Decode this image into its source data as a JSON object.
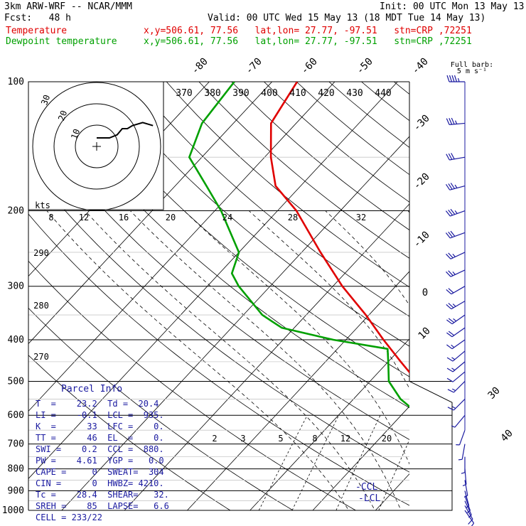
{
  "header": {
    "model": "3km ARW-WRF -- NCAR/MMM",
    "init": "Init: 00 UTC Mon 13 May 13",
    "fcst": "Fcst:   48 h",
    "valid": "Valid: 00 UTC Wed 15 May 13 (18 MDT Tue 14 May 13)",
    "temp_label": "Temperature",
    "temp_info": "x,y=506.61, 77.56   lat,lon= 27.77, -97.51   stn=CRP ,72251",
    "dew_label": "Dewpoint temperature",
    "dew_info": "x,y=506.61, 77.56   lat,lon= 27.77, -97.51   stn=CRP ,72251"
  },
  "colors": {
    "temperature": "#e00000",
    "dewpoint": "#00a000",
    "parcel_text": "#1a1aa0",
    "wind": "#1a1aa0"
  },
  "chart_data": {
    "type": "line",
    "title": "",
    "ylabel": "",
    "pressure_ticks": [
      "100",
      "200",
      "300",
      "400",
      "500",
      "600",
      "700",
      "800",
      "900",
      "1000"
    ],
    "isotherm_labels": [
      "-80",
      "-70",
      "-60",
      "-50",
      "-40",
      "-30",
      "-20",
      "-10",
      "0",
      "10",
      "30",
      "40"
    ],
    "theta_labels": [
      "370",
      "380",
      "390",
      "400",
      "410",
      "420",
      "430",
      "440"
    ],
    "low_theta_labels": [
      "290",
      "280",
      "270"
    ],
    "mixing_ratio_labels": [
      "2",
      "3",
      "5",
      "8",
      "12",
      "20"
    ],
    "hodo_kts_label": "kts",
    "hodo_speed_labels": [
      "8",
      "12",
      "16",
      "20",
      "24",
      "28",
      "32"
    ],
    "hodo_ring_labels": [
      "10",
      "20",
      "30"
    ],
    "barb_label": "Full barb:",
    "barb_value": "5 m s⁻¹",
    "ccl_label": "-CCL",
    "lcl_label": "-LCL",
    "series": [
      {
        "name": "Temperature",
        "points": [
          [
            1000,
            27.0
          ],
          [
            970,
            25.0
          ],
          [
            950,
            24.0
          ],
          [
            925,
            23.0
          ],
          [
            900,
            23.5
          ],
          [
            850,
            22.0
          ],
          [
            800,
            21.5
          ],
          [
            750,
            17.5
          ],
          [
            700,
            14.5
          ],
          [
            650,
            10.5
          ],
          [
            600,
            7.0
          ],
          [
            550,
            3.0
          ],
          [
            500,
            -2.5
          ],
          [
            450,
            -8.0
          ],
          [
            400,
            -14.0
          ],
          [
            350,
            -20.5
          ],
          [
            300,
            -28.5
          ],
          [
            250,
            -37.0
          ],
          [
            200,
            -47.0
          ],
          [
            175,
            -54.0
          ],
          [
            150,
            -59.0
          ],
          [
            125,
            -64.0
          ],
          [
            100,
            -66.0
          ]
        ]
      },
      {
        "name": "Dewpoint temperature",
        "points": [
          [
            1000,
            23.0
          ],
          [
            970,
            20.5
          ],
          [
            950,
            20.0
          ],
          [
            925,
            21.0
          ],
          [
            900,
            20.0
          ],
          [
            850,
            18.5
          ],
          [
            800,
            16.5
          ],
          [
            750,
            15.5
          ],
          [
            700,
            13.0
          ],
          [
            650,
            8.0
          ],
          [
            600,
            3.0
          ],
          [
            550,
            -2.5
          ],
          [
            500,
            -7.0
          ],
          [
            450,
            -10.0
          ],
          [
            420,
            -12.0
          ],
          [
            400,
            -22.0
          ],
          [
            375,
            -32.0
          ],
          [
            350,
            -37.0
          ],
          [
            300,
            -45.0
          ],
          [
            280,
            -48.0
          ],
          [
            250,
            -50.0
          ],
          [
            200,
            -59.0
          ],
          [
            175,
            -65.0
          ],
          [
            150,
            -72.0
          ],
          [
            125,
            -75.0
          ],
          [
            100,
            -76.0
          ]
        ]
      }
    ],
    "hodograph": [
      [
        0,
        0
      ],
      [
        1.5,
        0
      ],
      [
        2.5,
        0
      ],
      [
        4,
        0.5
      ],
      [
        5,
        1.5
      ],
      [
        6,
        1.5
      ],
      [
        7,
        2.0
      ],
      [
        9,
        2.5
      ],
      [
        11,
        2.0
      ]
    ],
    "winds": [
      {
        "p": 100,
        "dir": 270,
        "spd": 36
      },
      {
        "p": 125,
        "dir": 265,
        "spd": 32
      },
      {
        "p": 150,
        "dir": 260,
        "spd": 30
      },
      {
        "p": 175,
        "dir": 255,
        "spd": 28
      },
      {
        "p": 200,
        "dir": 250,
        "spd": 26
      },
      {
        "p": 225,
        "dir": 250,
        "spd": 25
      },
      {
        "p": 250,
        "dir": 245,
        "spd": 24
      },
      {
        "p": 275,
        "dir": 245,
        "spd": 22
      },
      {
        "p": 300,
        "dir": 240,
        "spd": 20
      },
      {
        "p": 325,
        "dir": 240,
        "spd": 18
      },
      {
        "p": 350,
        "dir": 235,
        "spd": 16
      },
      {
        "p": 375,
        "dir": 235,
        "spd": 15
      },
      {
        "p": 400,
        "dir": 235,
        "spd": 14
      },
      {
        "p": 425,
        "dir": 230,
        "spd": 12
      },
      {
        "p": 450,
        "dir": 230,
        "spd": 11
      },
      {
        "p": 475,
        "dir": 230,
        "spd": 10
      },
      {
        "p": 500,
        "dir": 225,
        "spd": 8
      },
      {
        "p": 550,
        "dir": 225,
        "spd": 6
      },
      {
        "p": 600,
        "dir": 220,
        "spd": 4
      },
      {
        "p": 650,
        "dir": 200,
        "spd": 3
      },
      {
        "p": 700,
        "dir": 190,
        "spd": 3
      },
      {
        "p": 750,
        "dir": 180,
        "spd": 2
      },
      {
        "p": 800,
        "dir": 175,
        "spd": 2
      },
      {
        "p": 850,
        "dir": 170,
        "spd": 2
      },
      {
        "p": 900,
        "dir": 165,
        "spd": 2
      },
      {
        "p": 925,
        "dir": 160,
        "spd": 3
      },
      {
        "p": 950,
        "dir": 155,
        "spd": 4
      },
      {
        "p": 975,
        "dir": 150,
        "spd": 5
      },
      {
        "p": 1000,
        "dir": 145,
        "spd": 5
      }
    ]
  },
  "parcel_info": {
    "title": "Parcel Info",
    "rows": [
      "T  =    23.2  Td =  20.4",
      "LI =    -0.1  LCL =  935.",
      "K  =      33  LFC =    0.",
      "TT =      46  EL  =    0.",
      "SWI =    0.2  CCL =  880.",
      "PW =    4.61  YGP =   0.0",
      "CAPE =     0  SWEAT=  304",
      "CIN =      0  HWBZ= 4210.",
      "Tc =    28.4  SHEAR=   32.",
      "SREH =    85  LAPSE=   6.6",
      "CELL = 233/22"
    ]
  }
}
